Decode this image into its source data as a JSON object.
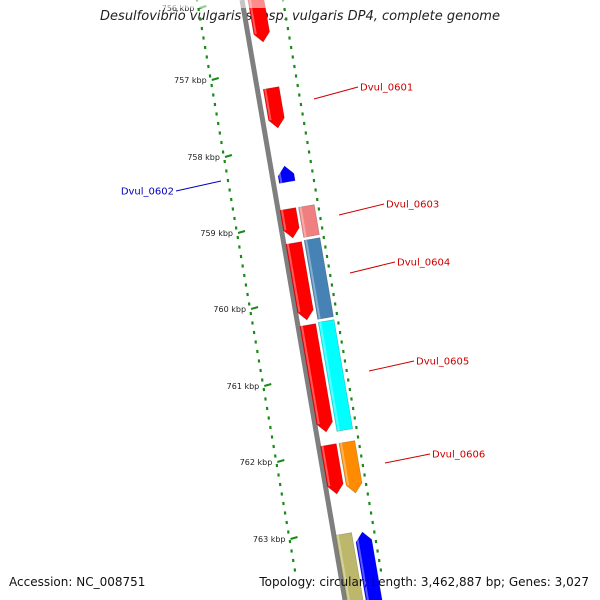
{
  "title": "Desulfovibrio vulgaris subsp. vulgaris DP4, complete genome",
  "footer": {
    "accession": "Accession: NC_008751",
    "topology": "Topology: circular; Length: 3,462,887 bp; Genes: 3,027"
  },
  "colors": {
    "backbone": "#7f7f7f",
    "tick_dots": "#1a8a1a",
    "label_red": "#cc0000",
    "label_blue": "#0000bb"
  },
  "ticks": [
    "756 kbp",
    "757 kbp",
    "758 kbp",
    "759 kbp",
    "760 kbp",
    "761 kbp",
    "762 kbp",
    "763 kbp"
  ],
  "genes": [
    {
      "label": "",
      "color": "#ff0000"
    },
    {
      "label": "Dvul_0601",
      "color": "#ff0000"
    },
    {
      "label": "Dvul_0602",
      "color": "#0000ff"
    },
    {
      "label": "",
      "color": "#ff0000"
    },
    {
      "label": "Dvul_0603",
      "color": "#f08080"
    },
    {
      "label": "",
      "color": "#ff0000"
    },
    {
      "label": "Dvul_0604",
      "color": "#4682b4"
    },
    {
      "label": "",
      "color": "#ff0000"
    },
    {
      "label": "Dvul_0605",
      "color": "#00ffff"
    },
    {
      "label": "",
      "color": "#ff0000"
    },
    {
      "label": "Dvul_0606",
      "color": "#ff8c00"
    },
    {
      "label": "",
      "color": "#bdb76b"
    },
    {
      "label": "",
      "color": "#0000ff"
    }
  ]
}
